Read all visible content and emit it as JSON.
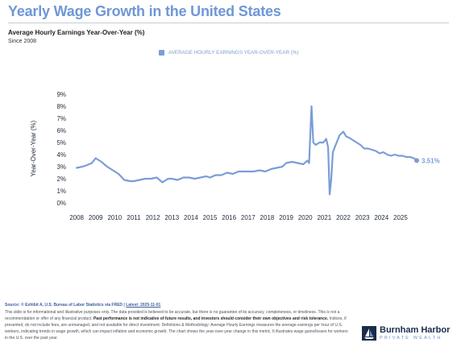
{
  "header": {
    "title": "Yearly Wage Growth in the United States",
    "subtitle": "Average Hourly Earnings Year-Over-Year (%)",
    "since": "Since 2008"
  },
  "legend": {
    "label": "AVERAGE HOURLY EARNINGS YEAR-OVER-YEAR (%)"
  },
  "colors": {
    "series": "#7a9dd6",
    "title": "#6f97d6",
    "grid": "#e6e8ec"
  },
  "chart_data": {
    "type": "line",
    "ylabel": "Year-Over-Year (%)",
    "ylim": [
      0,
      9
    ],
    "yticks": [
      0,
      1,
      2,
      3,
      4,
      5,
      6,
      7,
      8,
      9
    ],
    "ytick_labels": [
      "0%",
      "1%",
      "2%",
      "3%",
      "4%",
      "5%",
      "6%",
      "7%",
      "8%",
      "9%"
    ],
    "xlim": [
      2007.7,
      2026.4
    ],
    "xticks": [
      2008,
      2009,
      2010,
      2011,
      2012,
      2013,
      2014,
      2015,
      2016,
      2017,
      2018,
      2019,
      2020,
      2021,
      2022,
      2023,
      2024,
      2025
    ],
    "grid": false,
    "legend_position": "top",
    "end_label": "3.51%",
    "series": [
      {
        "name": "AVERAGE HOURLY EARNINGS YEAR-OVER-YEAR (%)",
        "x": [
          2008.0,
          2008.3,
          2008.5,
          2008.8,
          2009.0,
          2009.3,
          2009.6,
          2009.9,
          2010.2,
          2010.5,
          2010.8,
          2011.0,
          2011.3,
          2011.6,
          2011.9,
          2012.2,
          2012.5,
          2012.8,
          2013.0,
          2013.3,
          2013.6,
          2013.9,
          2014.2,
          2014.5,
          2014.8,
          2015.0,
          2015.3,
          2015.6,
          2015.9,
          2016.2,
          2016.5,
          2016.8,
          2017.0,
          2017.3,
          2017.6,
          2017.9,
          2018.2,
          2018.5,
          2018.8,
          2019.0,
          2019.3,
          2019.6,
          2019.9,
          2020.1,
          2020.2,
          2020.33,
          2020.42,
          2020.55,
          2020.75,
          2020.95,
          2021.1,
          2021.2,
          2021.28,
          2021.36,
          2021.45,
          2021.6,
          2021.8,
          2022.0,
          2022.15,
          2022.3,
          2022.5,
          2022.7,
          2022.9,
          2023.1,
          2023.3,
          2023.5,
          2023.7,
          2023.9,
          2024.1,
          2024.3,
          2024.5,
          2024.7,
          2024.9,
          2025.1,
          2025.3,
          2025.5,
          2025.7,
          2025.85
        ],
        "values": [
          2.9,
          3.0,
          3.1,
          3.3,
          3.7,
          3.4,
          3.0,
          2.7,
          2.4,
          1.9,
          1.8,
          1.8,
          1.9,
          2.0,
          2.0,
          2.1,
          1.7,
          2.0,
          2.0,
          1.9,
          2.1,
          2.1,
          2.0,
          2.1,
          2.2,
          2.1,
          2.3,
          2.3,
          2.5,
          2.4,
          2.6,
          2.6,
          2.6,
          2.6,
          2.7,
          2.6,
          2.8,
          2.9,
          3.0,
          3.3,
          3.4,
          3.3,
          3.2,
          3.5,
          3.3,
          8.0,
          5.0,
          4.8,
          5.0,
          5.0,
          5.3,
          4.6,
          0.7,
          1.9,
          4.2,
          4.8,
          5.6,
          5.9,
          5.5,
          5.4,
          5.2,
          5.0,
          4.8,
          4.5,
          4.5,
          4.4,
          4.3,
          4.1,
          4.2,
          4.0,
          3.9,
          4.0,
          3.9,
          3.9,
          3.8,
          3.8,
          3.7,
          3.51
        ]
      }
    ]
  },
  "footer": {
    "source_prefix": "Source: © Exhibit A, U.S. Bureau of Labor Statistics via FRED",
    "separator": "|",
    "latest": "Latest: 2025-11-01",
    "disclaimer_1": "This slide is for informational and illustrative purposes only. The data provided is believed to be accurate, but there is no guarantee of its accuracy, completeness, or timeliness. This is not a recommendation or offer of any financial product. ",
    "disclaimer_bold": "Past performance is not indicative of future results, and investors should consider their own objectives and risk tolerance.",
    "disclaimer_2": " Indices, if presented, do not include fees, are unmanaged, and not available for direct investment. Definitions & Methodology: Average Hourly Earnings measures the average earnings per hour of U.S. workers, indicating trends in wage growth, which can impact inflation and economic growth. The chart shows the year-over-year change in this metric. It illustrates wage gains/losses for workers in the U.S. over the past year."
  },
  "logo": {
    "name": "Burnham Harbor",
    "tagline": "PRIVATE WEALTH",
    "icon": "sailboat-logo-icon"
  }
}
